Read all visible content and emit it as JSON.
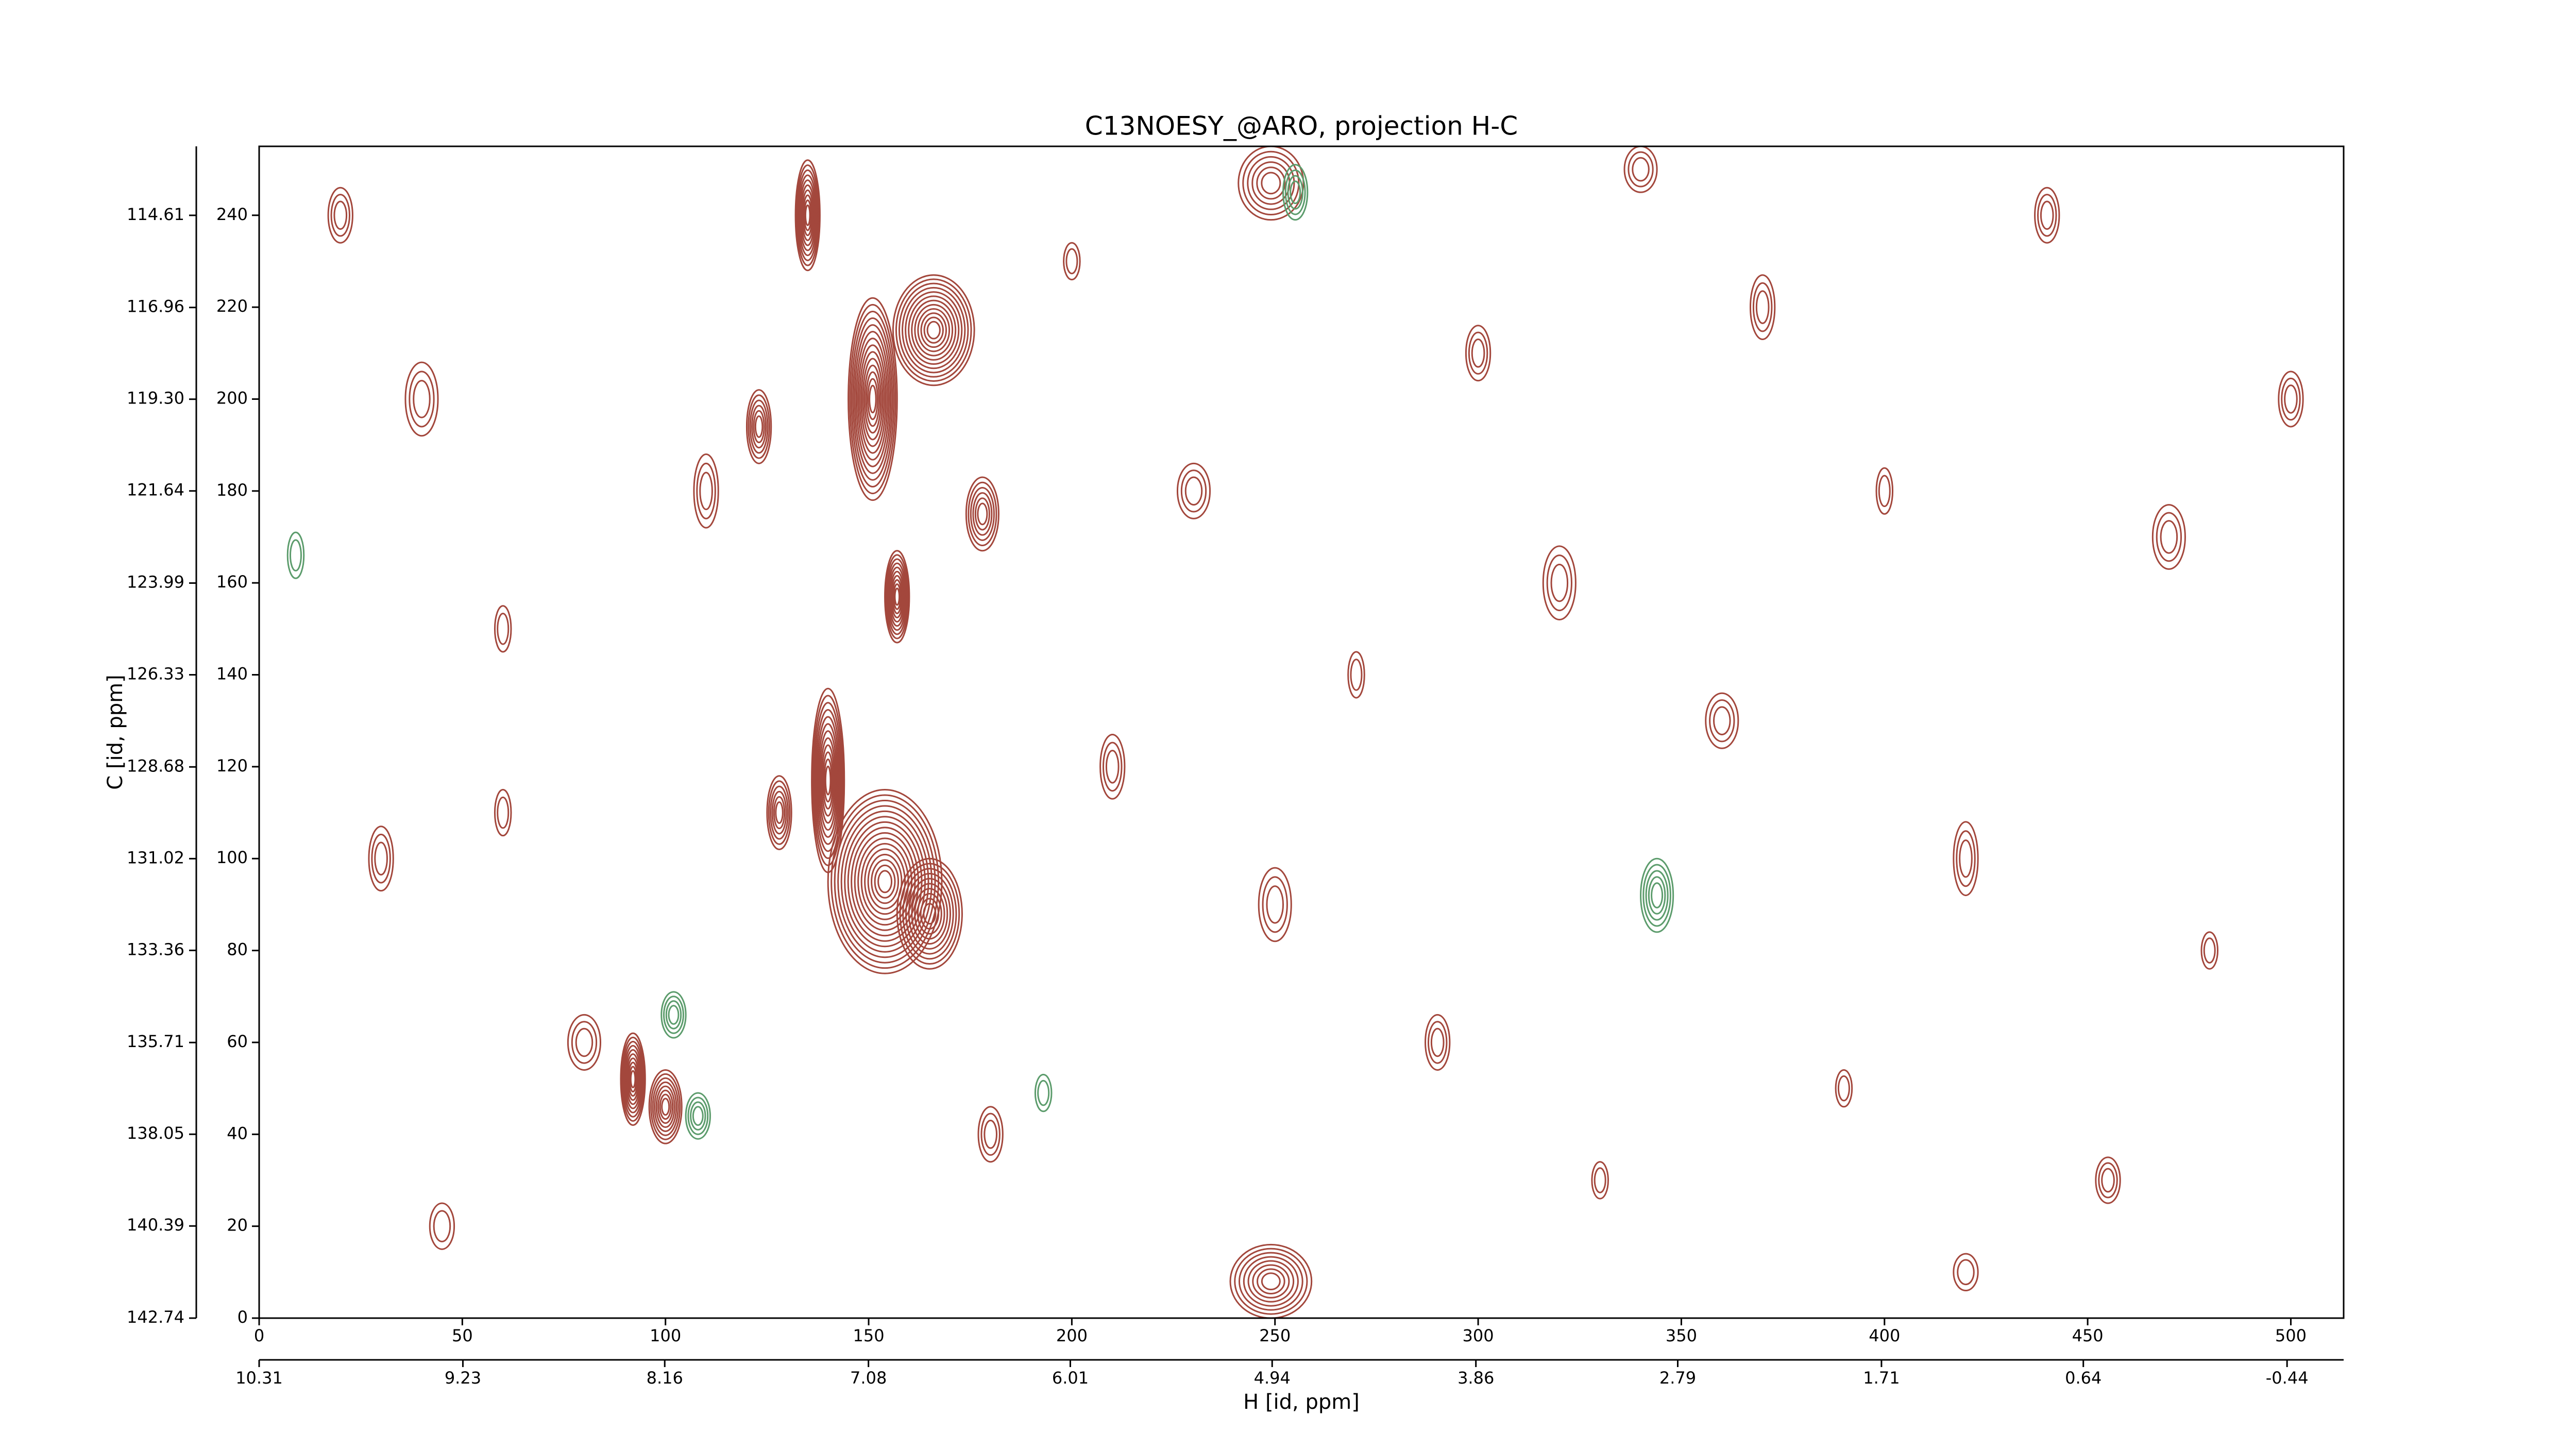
{
  "chart_data": {
    "type": "contour",
    "title": "C13NOESY_@ARO, projection H-C",
    "xlabel": "H [id, ppm]",
    "ylabel": "C [id, ppm]",
    "xlim": [
      0,
      513
    ],
    "xticks": [
      0,
      50,
      100,
      150,
      200,
      250,
      300,
      350,
      400,
      450,
      500
    ],
    "ylim": [
      0,
      255
    ],
    "yticks": [
      0,
      20,
      40,
      60,
      80,
      100,
      120,
      140,
      160,
      180,
      200,
      220,
      240
    ],
    "x2lim": [
      10.31,
      -0.74
    ],
    "x2ticks": [
      10.31,
      9.23,
      8.16,
      7.08,
      6.01,
      4.94,
      3.86,
      2.79,
      1.71,
      0.64,
      -0.44
    ],
    "y2lim": [
      142.74,
      112.85
    ],
    "y2ticks": [
      142.74,
      140.39,
      138.05,
      135.71,
      133.36,
      131.02,
      128.68,
      126.33,
      123.99,
      121.64,
      {
        "value": 119.3,
        "label": "119.30"
      },
      116.96,
      114.61
    ],
    "series": [
      {
        "color": "#a3473c",
        "x": [
          135,
          151,
          166,
          157,
          178,
          123,
          140,
          128,
          154,
          165,
          92,
          100,
          249,
          249,
          20,
          40,
          60,
          30,
          80,
          45,
          110,
          200,
          230,
          210,
          270,
          300,
          320,
          290,
          330,
          370,
          360,
          400,
          420,
          440,
          470,
          480,
          500,
          455,
          390,
          250,
          180,
          60,
          340,
          420
        ],
        "y": [
          240,
          200,
          215,
          157,
          175,
          194,
          117,
          110,
          95,
          88,
          52,
          46,
          247,
          8,
          240,
          200,
          150,
          100,
          60,
          20,
          180,
          230,
          180,
          120,
          140,
          210,
          160,
          60,
          30,
          220,
          130,
          180,
          100,
          240,
          170,
          80,
          200,
          30,
          50,
          90,
          40,
          110,
          250,
          10
        ],
        "sx": [
          3,
          6,
          10,
          3,
          4,
          3,
          4,
          3,
          14,
          8,
          3,
          4,
          8,
          10,
          3,
          4,
          2,
          3,
          4,
          3,
          3,
          2,
          4,
          3,
          2,
          3,
          4,
          3,
          2,
          3,
          4,
          2,
          3,
          3,
          4,
          2,
          3,
          3,
          2,
          4,
          3,
          2,
          4,
          3
        ],
        "sy": [
          12,
          22,
          12,
          10,
          8,
          8,
          20,
          8,
          20,
          12,
          10,
          8,
          8,
          8,
          6,
          8,
          5,
          7,
          6,
          5,
          8,
          4,
          6,
          7,
          5,
          6,
          8,
          6,
          4,
          7,
          6,
          5,
          8,
          6,
          7,
          4,
          6,
          5,
          4,
          8,
          6,
          5,
          5,
          4
        ],
        "levels": [
          10,
          14,
          12,
          10,
          6,
          6,
          12,
          6,
          16,
          10,
          10,
          8,
          6,
          8,
          3,
          3,
          2,
          3,
          3,
          2,
          3,
          2,
          3,
          3,
          2,
          3,
          3,
          3,
          2,
          3,
          3,
          2,
          3,
          3,
          3,
          2,
          3,
          3,
          2,
          3,
          3,
          2,
          3,
          2
        ]
      },
      {
        "color": "#5c9c6c",
        "x": [
          344,
          102,
          108,
          255,
          9,
          193
        ],
        "y": [
          92,
          66,
          44,
          245,
          166,
          49
        ],
        "sx": [
          4,
          3,
          3,
          3,
          2,
          2
        ],
        "sy": [
          8,
          5,
          5,
          6,
          5,
          4
        ],
        "levels": [
          5,
          4,
          4,
          4,
          2,
          2
        ]
      }
    ]
  }
}
